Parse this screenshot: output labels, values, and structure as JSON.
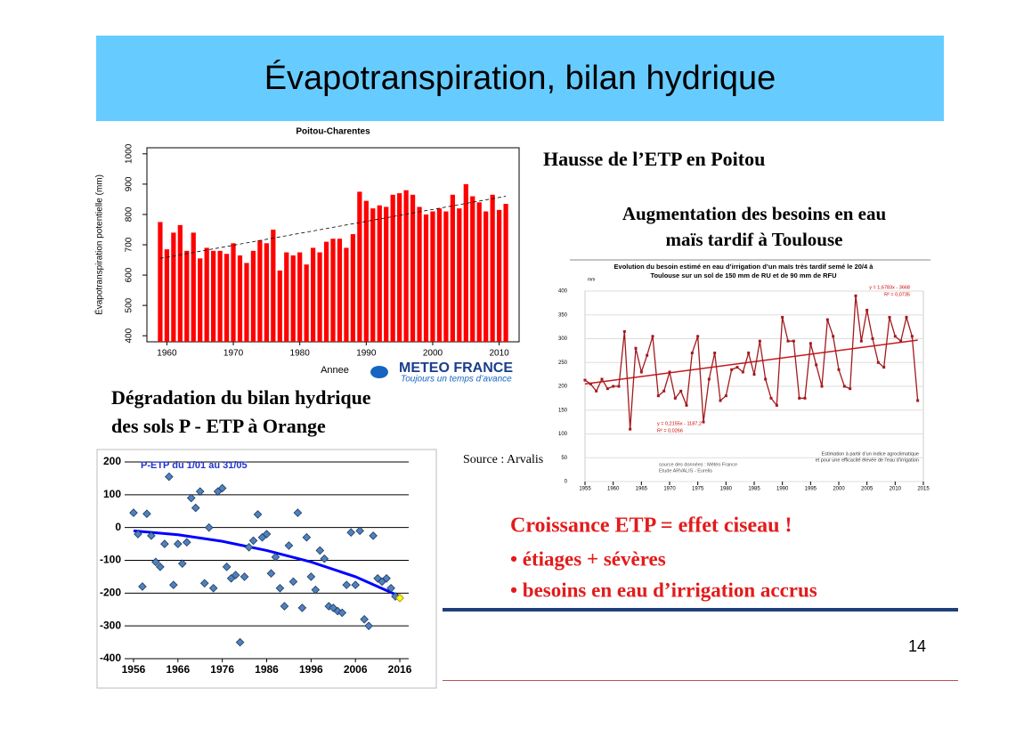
{
  "title": "Évapotranspiration, bilan hydrique",
  "heading_poitou": "Hausse de l’ETP en Poitou",
  "heading_toulouse": [
    "Augmentation des besoins en eau",
    "maïs tardif à Toulouse"
  ],
  "heading_orange": [
    "Dégradation du bilan hydrique",
    "des sols P - ETP à Orange"
  ],
  "source": "Source : Arvalis",
  "logo": {
    "name": "METEO FRANCE",
    "tagline": "Toujours un temps d’avance"
  },
  "conclusion": {
    "title": "Croissance ETP = effet ciseau !",
    "bullets": [
      "• étiages + sévères",
      "• besoins en eau d’irrigation accrus"
    ]
  },
  "page_number": "14",
  "chart_data": [
    {
      "type": "bar",
      "title": "Poitou-Charentes",
      "x_label": "Annee",
      "y_label": "Évapotranspiration potentielle (mm)",
      "x": [
        1959,
        1960,
        1961,
        1962,
        1963,
        1964,
        1965,
        1966,
        1967,
        1968,
        1969,
        1970,
        1971,
        1972,
        1973,
        1974,
        1975,
        1976,
        1977,
        1978,
        1979,
        1980,
        1981,
        1982,
        1983,
        1984,
        1985,
        1986,
        1987,
        1988,
        1989,
        1990,
        1991,
        1992,
        1993,
        1994,
        1995,
        1996,
        1997,
        1998,
        1999,
        2000,
        2001,
        2002,
        2003,
        2004,
        2005,
        2006,
        2007,
        2008,
        2009,
        2010,
        2011
      ],
      "values": [
        775,
        685,
        740,
        765,
        680,
        740,
        655,
        690,
        680,
        680,
        670,
        705,
        665,
        640,
        680,
        715,
        705,
        750,
        615,
        675,
        665,
        675,
        635,
        690,
        675,
        710,
        720,
        720,
        690,
        735,
        875,
        845,
        820,
        830,
        825,
        865,
        870,
        880,
        865,
        825,
        800,
        810,
        820,
        810,
        865,
        820,
        900,
        860,
        840,
        810,
        865,
        815,
        835
      ],
      "color": "#ff0000",
      "trend": {
        "x": [
          1959,
          2011
        ],
        "values": [
          655,
          860
        ],
        "color": "#000000"
      },
      "xlim": [
        1957,
        2013
      ],
      "ylim": [
        380,
        1020
      ],
      "xticks": [
        1960,
        1970,
        1980,
        1990,
        2000,
        2010
      ],
      "yticks": [
        400,
        500,
        600,
        700,
        800,
        900,
        1000
      ]
    },
    {
      "type": "line",
      "title": [
        "Evolution du besoin estimé en eau d’irrigation d’un maïs très tardif semé le 20/4 à",
        "Toulouse sur un sol de 150 mm de RU et de 90 mm de RFU"
      ],
      "y_unit": "mm",
      "x": [
        1955,
        1956,
        1957,
        1958,
        1959,
        1960,
        1961,
        1962,
        1963,
        1964,
        1965,
        1966,
        1967,
        1968,
        1969,
        1970,
        1971,
        1972,
        1973,
        1974,
        1975,
        1976,
        1977,
        1978,
        1979,
        1980,
        1981,
        1982,
        1983,
        1984,
        1985,
        1986,
        1987,
        1988,
        1989,
        1990,
        1991,
        1992,
        1993,
        1994,
        1995,
        1996,
        1997,
        1998,
        1999,
        2000,
        2001,
        2002,
        2003,
        2004,
        2005,
        2006,
        2007,
        2008,
        2009,
        2010,
        2011,
        2012,
        2013,
        2014
      ],
      "values": [
        213,
        205,
        190,
        215,
        195,
        200,
        200,
        315,
        110,
        280,
        230,
        265,
        305,
        180,
        190,
        230,
        175,
        190,
        160,
        270,
        305,
        125,
        215,
        270,
        170,
        180,
        235,
        240,
        230,
        270,
        225,
        295,
        215,
        175,
        160,
        345,
        295,
        295,
        175,
        175,
        290,
        245,
        200,
        340,
        305,
        235,
        200,
        195,
        390,
        295,
        360,
        300,
        250,
        240,
        345,
        305,
        295,
        345,
        305,
        170
      ],
      "color": "#a3191c",
      "trend": {
        "x": [
          1955,
          2014
        ],
        "values": [
          205,
          297
        ],
        "color": "#c8161d"
      },
      "annotations": [
        "y = 1,6783x - 3668",
        "R² = 0,0735",
        "y = 0,2155x - 1187,2",
        "R² = 0,0266",
        "source des données : Météo France",
        "Etude ARVALIS - Eurelis",
        "Estimation à partir d’un indice agroclimatique",
        "et pour une efficacité élevée de l’eau d’irrigation"
      ],
      "xlim": [
        1955,
        2015
      ],
      "ylim": [
        0,
        400
      ],
      "xticks": [
        1955,
        1960,
        1965,
        1970,
        1975,
        1980,
        1985,
        1990,
        1995,
        2000,
        2005,
        2010,
        2015
      ],
      "yticks": [
        0,
        50,
        100,
        150,
        200,
        250,
        300,
        350,
        400
      ]
    },
    {
      "type": "scatter",
      "title": "P-ETP du 1/01 au 31/05",
      "x": [
        1956,
        1957,
        1958,
        1959,
        1960,
        1961,
        1962,
        1963,
        1964,
        1965,
        1966,
        1967,
        1968,
        1969,
        1970,
        1971,
        1972,
        1973,
        1974,
        1975,
        1976,
        1977,
        1978,
        1979,
        1980,
        1981,
        1982,
        1983,
        1984,
        1985,
        1986,
        1987,
        1988,
        1989,
        1990,
        1991,
        1992,
        1993,
        1994,
        1995,
        1996,
        1997,
        1998,
        1999,
        2000,
        2001,
        2002,
        2003,
        2004,
        2005,
        2006,
        2007,
        2008,
        2009,
        2010,
        2011,
        2012,
        2013,
        2014,
        2015,
        2016
      ],
      "values": [
        45,
        -20,
        -180,
        42,
        -25,
        -105,
        -120,
        -50,
        155,
        -175,
        -50,
        -110,
        -45,
        90,
        60,
        110,
        -170,
        0,
        -185,
        110,
        120,
        -120,
        -155,
        -145,
        -350,
        -150,
        -60,
        -40,
        40,
        -30,
        -20,
        -140,
        -90,
        -185,
        -240,
        -55,
        -165,
        45,
        -245,
        -30,
        -150,
        -190,
        -70,
        -95,
        -240,
        -245,
        -255,
        -260,
        -175,
        -15,
        -175,
        -10,
        -280,
        -300,
        -25,
        -155,
        -165,
        -155,
        -185,
        -210,
        -215
      ],
      "color": "#4f81bd",
      "last_point_color": "#ffff00",
      "grid": true,
      "trend": {
        "x": [
          1956,
          1966,
          1976,
          1986,
          1996,
          2006,
          2016
        ],
        "values": [
          -10,
          -22,
          -42,
          -70,
          -105,
          -150,
          -210
        ],
        "color": "#0000ff"
      },
      "xlim": [
        1954,
        2018
      ],
      "ylim": [
        -400,
        200
      ],
      "xticks": [
        1956,
        1966,
        1976,
        1986,
        1996,
        2006,
        2016
      ],
      "yticks": [
        200,
        100,
        0,
        -100,
        -200,
        -300,
        -400
      ]
    }
  ]
}
